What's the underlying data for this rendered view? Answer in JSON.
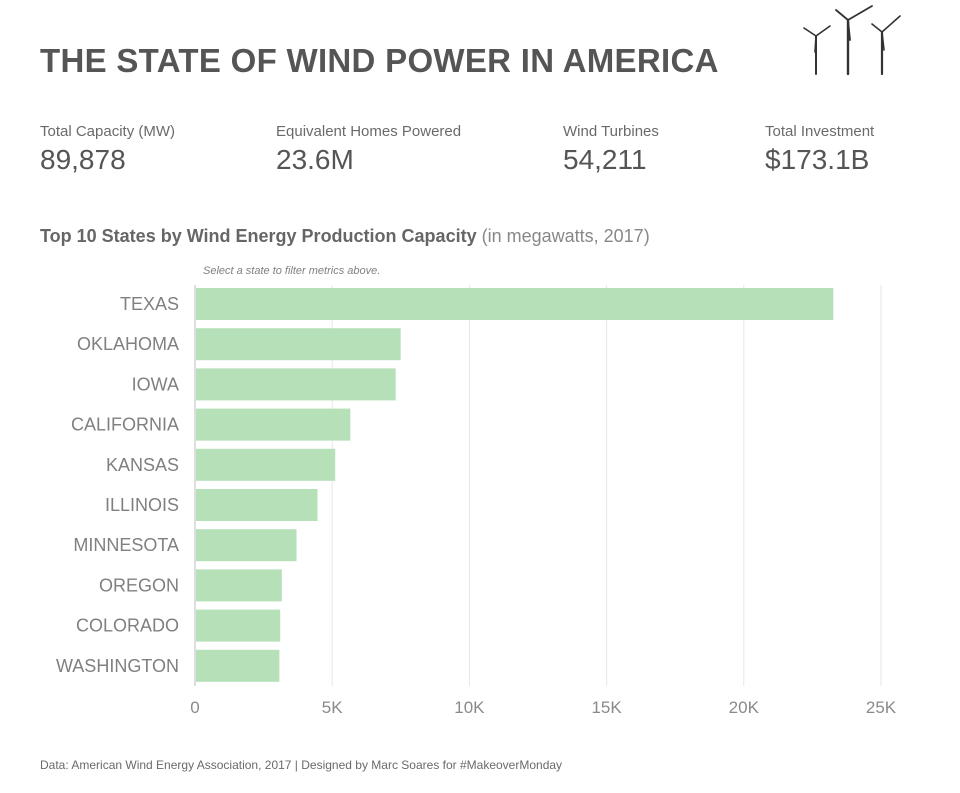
{
  "header": {
    "title": "THE STATE OF WIND POWER IN AMERICA",
    "icon": "wind-turbines-icon"
  },
  "kpis": [
    {
      "label": "Total Capacity (MW)",
      "value": "89,878"
    },
    {
      "label": "Equivalent Homes Powered",
      "value": "23.6M"
    },
    {
      "label": "Wind Turbines",
      "value": "54,211"
    },
    {
      "label": "Total Investment",
      "value": "$173.1B"
    }
  ],
  "chart_header": {
    "title": "Top 10 States by Wind Energy Production Capacity",
    "subtitle": "(in megawatts, 2017)",
    "hint": "Select a state to filter metrics above."
  },
  "colors": {
    "bar": "#b5e0b8",
    "text": "#555555",
    "grid": "#e6e6e6",
    "axis": "#bdbdbd"
  },
  "chart_data": {
    "type": "bar",
    "orientation": "horizontal",
    "title": "Top 10 States by Wind Energy Production Capacity",
    "subtitle": "(in megawatts, 2017)",
    "categories": [
      "TEXAS",
      "OKLAHOMA",
      "IOWA",
      "CALIFORNIA",
      "KANSAS",
      "ILLINOIS",
      "MINNESOTA",
      "OREGON",
      "COLORADO",
      "WASHINGTON"
    ],
    "values": [
      23262,
      7495,
      7312,
      5662,
      5110,
      4464,
      3699,
      3163,
      3106,
      3075
    ],
    "xlim": [
      0,
      25000
    ],
    "xticks": [
      0,
      5000,
      10000,
      15000,
      20000,
      25000
    ],
    "xtick_labels": [
      "0",
      "5K",
      "10K",
      "15K",
      "20K",
      "25K"
    ],
    "xlabel": "",
    "ylabel": "",
    "grid": true,
    "legend": "none"
  },
  "footer": {
    "text": "Data: American Wind Energy Association, 2017  |  Designed by Marc Soares for #MakeoverMonday"
  }
}
